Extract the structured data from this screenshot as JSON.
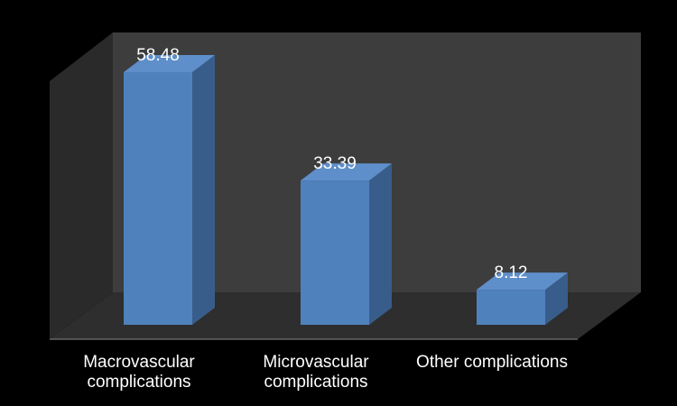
{
  "chart_data": {
    "type": "bar",
    "categories": [
      "Macrovascular\ncomplications",
      "Microvascular\ncomplications",
      "Other complications"
    ],
    "values": [
      58.48,
      33.39,
      8.12
    ],
    "data_labels": [
      "58.48",
      "33.39",
      "8.12"
    ],
    "title": "",
    "xlabel": "",
    "ylabel": "",
    "ylim": [
      0,
      65
    ],
    "grid": false,
    "legend": "none",
    "colors": {
      "background": "#000000",
      "plot_back_wall": "#3d3d3d",
      "plot_side_wall": "#2a2a2a",
      "plot_floor": "#2e2e2e",
      "bar_front": "#4f81bd",
      "bar_side": "#385d8a",
      "bar_top": "#5f8fcb",
      "text": "#ffffff"
    }
  }
}
